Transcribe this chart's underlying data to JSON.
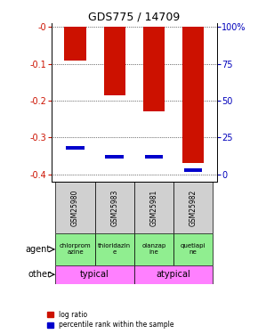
{
  "title": "GDS775 / 14709",
  "samples": [
    "GSM25980",
    "GSM25983",
    "GSM25981",
    "GSM25982"
  ],
  "log_ratios": [
    -0.09,
    -0.185,
    -0.23,
    -0.37
  ],
  "percentile_ranks": [
    -0.328,
    -0.352,
    -0.352,
    -0.388
  ],
  "left_ylim": [
    -0.42,
    0.01
  ],
  "left_yticks": [
    0.0,
    -0.1,
    -0.2,
    -0.3,
    -0.4
  ],
  "left_yticklabels": [
    "-0",
    "-0.1",
    "-0.2",
    "-0.3",
    "-0.4"
  ],
  "right_yticklabels": [
    "100%",
    "75",
    "50",
    "25",
    "0"
  ],
  "agents": [
    "chlorprom\nazine",
    "thioridazin\ne",
    "olanzap\nine",
    "quetiapi\nne"
  ],
  "other_color": "#FF80FF",
  "bar_color_red": "#CC1100",
  "bar_color_blue": "#0000CC",
  "bar_width": 0.55,
  "sample_bg": "#D0D0D0",
  "green_bg": "#90EE90",
  "left_tick_color": "#CC1100",
  "right_tick_color": "#0000BB"
}
